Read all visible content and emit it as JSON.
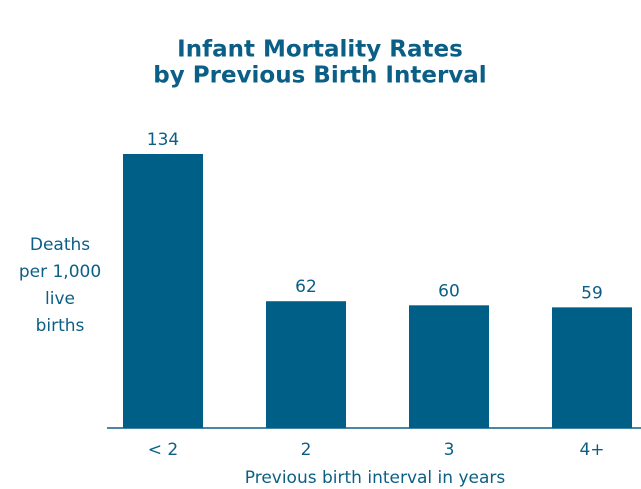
{
  "chart_data": {
    "type": "bar",
    "title": [
      "Infant Mortality Rates",
      "by Previous Birth Interval"
    ],
    "y_label": [
      "Deaths",
      "per 1,000",
      "live",
      "births"
    ],
    "x_label": "Previous birth interval in years",
    "categories": [
      "< 2",
      "2",
      "3",
      "4+"
    ],
    "values": [
      134,
      62,
      60,
      59
    ],
    "color": "#005f86"
  }
}
